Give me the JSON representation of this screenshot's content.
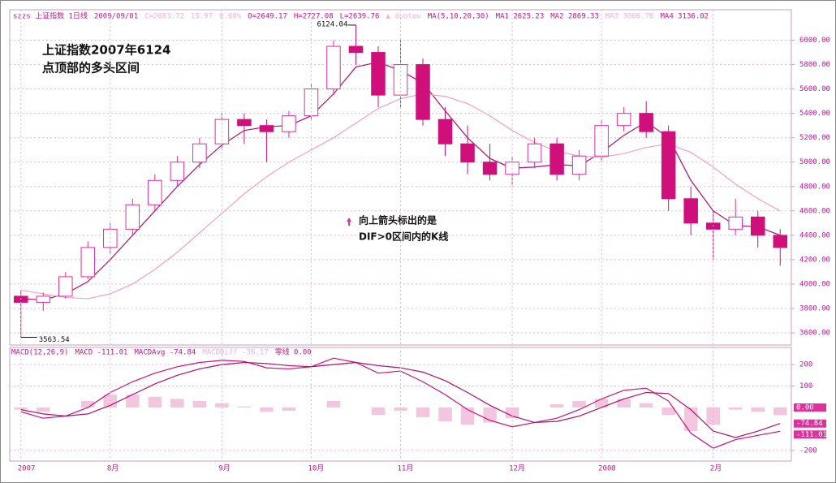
{
  "chart_data": [
    {
      "type": "candlestick",
      "header": [
        {
          "text": "szzs 上证指数 1日线",
          "color": "#c0188c"
        },
        {
          "text": "2009/09/01",
          "color": "#c0188c"
        },
        {
          "text": "C=2683.72",
          "color": "#f2b0d8"
        },
        {
          "text": "15.97",
          "color": "#f2b0d8"
        },
        {
          "text": "0.60%",
          "color": "#f2b0d8"
        },
        {
          "text": "O=2649.17",
          "color": "#c0188c"
        },
        {
          "text": "H=2727.08",
          "color": "#c0188c"
        },
        {
          "text": "L=2639.76",
          "color": "#c0188c"
        },
        {
          "text": "▲ duotou",
          "color": "#f2b0d8"
        },
        {
          "text": "MA(5,10,20,30)",
          "color": "#c0188c"
        },
        {
          "text": "MA1 2625.23",
          "color": "#c0188c"
        },
        {
          "text": "MA2 2869.33",
          "color": "#c0188c"
        },
        {
          "text": "MA3 3006.76",
          "color": "#f2b0d8"
        },
        {
          "text": "MA4 3136.02",
          "color": "#c0188c"
        }
      ],
      "title_lines": [
        "上证指数2007年6124",
        "点顶部的多头区间"
      ],
      "note_lines": [
        "向上箭头标出的是",
        "DIF>0区间内的K线"
      ],
      "annotations": [
        {
          "label": "6124.04",
          "index": 15,
          "value": 6124.04
        },
        {
          "label": "3563.54",
          "index": 0,
          "value": 3563.54
        }
      ],
      "open": [
        3900,
        3850,
        3900,
        4060,
        4300,
        4450,
        4650,
        4850,
        5000,
        5150,
        5350,
        5300,
        5250,
        5380,
        5600,
        5950,
        5900,
        5550,
        5800,
        5350,
        5150,
        5000,
        4900,
        5000,
        5150,
        4900,
        5050,
        5300,
        5400,
        5250,
        4700,
        4500,
        4450,
        4550,
        4400
      ],
      "high": [
        3950,
        3930,
        4100,
        4350,
        4500,
        4700,
        4900,
        5050,
        5200,
        5400,
        5400,
        5350,
        5420,
        5650,
        6000,
        6124.04,
        5950,
        6000,
        5850,
        5450,
        5300,
        5150,
        5050,
        5200,
        5200,
        5100,
        5350,
        5450,
        5500,
        5300,
        4800,
        4600,
        4700,
        4600,
        4450
      ],
      "low": [
        3563.54,
        3780,
        3880,
        4040,
        4250,
        4400,
        4600,
        4800,
        4950,
        5100,
        5150,
        5000,
        5200,
        5350,
        5550,
        5800,
        5450,
        5450,
        5300,
        5050,
        4900,
        4850,
        4800,
        4950,
        4850,
        4850,
        5000,
        5250,
        5200,
        4600,
        4400,
        4200,
        4400,
        4300,
        4150
      ],
      "close": [
        3850,
        3900,
        4060,
        4300,
        4450,
        4650,
        4850,
        5000,
        5150,
        5350,
        5300,
        5250,
        5380,
        5600,
        5950,
        5900,
        5550,
        5800,
        5350,
        5150,
        5000,
        4900,
        5000,
        5150,
        4900,
        5050,
        5300,
        5400,
        5250,
        4700,
        4500,
        4450,
        4550,
        4400,
        4300
      ],
      "up_color": "#e0309a",
      "down_color": "#d0107a",
      "ma_series": [
        {
          "color": "#b0106e",
          "values": [
            3880,
            3870,
            3920,
            4020,
            4200,
            4400,
            4600,
            4800,
            4980,
            5140,
            5260,
            5290,
            5300,
            5380,
            5560,
            5780,
            5820,
            5750,
            5650,
            5420,
            5200,
            5030,
            4950,
            4960,
            4980,
            4970,
            5080,
            5220,
            5330,
            5200,
            4850,
            4600,
            4480,
            4470,
            4400
          ]
        },
        {
          "color": "#f0a0cc",
          "values": [
            3950,
            3920,
            3890,
            3880,
            3920,
            4000,
            4120,
            4260,
            4420,
            4580,
            4740,
            4880,
            5000,
            5100,
            5200,
            5320,
            5440,
            5520,
            5560,
            5540,
            5480,
            5380,
            5260,
            5160,
            5090,
            5050,
            5040,
            5070,
            5120,
            5150,
            5080,
            4960,
            4820,
            4700,
            4600
          ]
        }
      ],
      "ylim": [
        3500,
        6250
      ],
      "yticks": [
        {
          "value": 3600,
          "label": "3600.00"
        },
        {
          "value": 3800,
          "label": "3800.00"
        },
        {
          "value": 4000,
          "label": "4000.00"
        },
        {
          "value": 4200,
          "label": "4200.00"
        },
        {
          "value": 4400,
          "label": "4400.00"
        },
        {
          "value": 4600,
          "label": "4600.00"
        },
        {
          "value": 4800,
          "label": "4800.00"
        },
        {
          "value": 5000,
          "label": "5000.00"
        },
        {
          "value": 5200,
          "label": "5200.00"
        },
        {
          "value": 5400,
          "label": "5400.00"
        },
        {
          "value": 5600,
          "label": "5600.00"
        },
        {
          "value": 5800,
          "label": "5800.00"
        },
        {
          "value": 6000,
          "label": "6000.00"
        }
      ],
      "grid": true
    },
    {
      "type": "macd",
      "header": [
        {
          "text": "MACD(12,26,9)",
          "color": "#c0188c"
        },
        {
          "text": "MACD -111.01",
          "color": "#c0188c"
        },
        {
          "text": "MACDAvg -74.84",
          "color": "#c0188c"
        },
        {
          "text": "MACDDiff -36.17",
          "color": "#f2b0d8"
        },
        {
          "text": "零线 0.00",
          "color": "#c0188c"
        }
      ],
      "categories": [
        "2007",
        null,
        null,
        null,
        "8月",
        null,
        null,
        null,
        null,
        "9月",
        null,
        null,
        null,
        "10月",
        null,
        null,
        null,
        "11月",
        null,
        null,
        null,
        null,
        "12月",
        null,
        null,
        null,
        "2008",
        null,
        null,
        null,
        null,
        "2月",
        null,
        null,
        null
      ],
      "series": [
        {
          "color": "#d0107a",
          "values": [
            -20,
            -50,
            -40,
            0,
            70,
            120,
            160,
            190,
            210,
            220,
            215,
            185,
            180,
            190,
            230,
            210,
            160,
            170,
            120,
            60,
            -10,
            -60,
            -90,
            -70,
            -50,
            -10,
            40,
            80,
            90,
            30,
            -120,
            -190,
            -150,
            -130,
            -111.01
          ]
        },
        {
          "color": "#b0106e",
          "values": [
            -10,
            -30,
            -40,
            -30,
            10,
            60,
            110,
            150,
            180,
            200,
            210,
            205,
            195,
            190,
            200,
            210,
            195,
            185,
            165,
            125,
            70,
            10,
            -40,
            -70,
            -65,
            -40,
            0,
            40,
            70,
            65,
            -10,
            -110,
            -140,
            -110,
            -74.84
          ]
        }
      ],
      "hist": {
        "color": "#e8a0c8",
        "values": [
          -10,
          -20,
          0,
          30,
          60,
          60,
          50,
          40,
          30,
          20,
          5,
          -20,
          -15,
          0,
          30,
          0,
          -35,
          -15,
          -45,
          -65,
          -80,
          -70,
          -50,
          0,
          15,
          30,
          40,
          40,
          20,
          -35,
          -110,
          -80,
          -10,
          -20,
          -36.17
        ]
      },
      "ylim": [
        -250,
        280
      ],
      "yticks": [
        -200,
        100,
        200
      ],
      "value_tags": [
        {
          "value": 0,
          "label": "0.00"
        },
        {
          "value": -74.84,
          "label": "-74.84"
        },
        {
          "value": -111.01,
          "label": "-111.01"
        }
      ],
      "grid": true
    }
  ]
}
